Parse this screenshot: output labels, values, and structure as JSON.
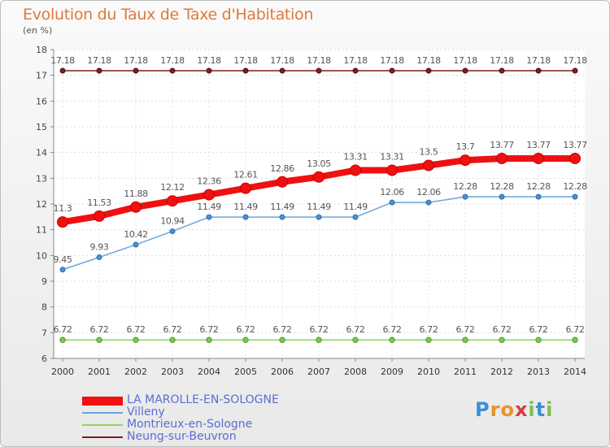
{
  "header": {
    "title": "Evolution du Taux de Taxe d'Habitation",
    "unit": "(en %)"
  },
  "chart_data": {
    "type": "line",
    "title": "Evolution du Taux de Taxe d'Habitation",
    "ylabel": "(en %)",
    "xlabel": "",
    "x": [
      "2000",
      "2001",
      "2002",
      "2003",
      "2004",
      "2005",
      "2006",
      "2007",
      "2008",
      "2009",
      "2010",
      "2011",
      "2012",
      "2013",
      "2014"
    ],
    "ylim": [
      6,
      18
    ],
    "yticks": [
      6,
      7,
      8,
      9,
      10,
      11,
      12,
      13,
      14,
      15,
      16,
      17,
      18
    ],
    "grid": true,
    "legend_position": "bottom-left",
    "series": [
      {
        "name": "LA MAROLLE-EN-SOLOGNE",
        "color": "#ee1111",
        "values": [
          11.3,
          11.53,
          11.88,
          12.12,
          12.36,
          12.61,
          12.86,
          13.05,
          13.31,
          13.31,
          13.5,
          13.7,
          13.77,
          13.77,
          13.77
        ],
        "labels": [
          "11.3",
          "11.53",
          "11.88",
          "12.12",
          "12.36",
          "12.61",
          "12.86",
          "13.05",
          "13.31",
          "13.31",
          "13.5",
          "13.7",
          "13.77",
          "13.77",
          "13.77"
        ]
      },
      {
        "name": "Villeny",
        "color": "#5b9bd5",
        "values": [
          9.45,
          9.93,
          10.42,
          10.94,
          11.49,
          11.49,
          11.49,
          11.49,
          11.49,
          12.06,
          12.06,
          12.28,
          12.28,
          12.28,
          12.28
        ],
        "labels": [
          "9.45",
          "9.93",
          "10.42",
          "10.94",
          "11.49",
          "11.49",
          "11.49",
          "11.49",
          "11.49",
          "12.06",
          "12.06",
          "12.28",
          "12.28",
          "12.28",
          "12.28"
        ]
      },
      {
        "name": "Montrieux-en-Sologne",
        "color": "#7fc94e",
        "values": [
          6.72,
          6.72,
          6.72,
          6.72,
          6.72,
          6.72,
          6.72,
          6.72,
          6.72,
          6.72,
          6.72,
          6.72,
          6.72,
          6.72,
          6.72
        ],
        "labels": [
          "6.72",
          "6.72",
          "6.72",
          "6.72",
          "6.72",
          "6.72",
          "6.72",
          "6.72",
          "6.72",
          "6.72",
          "6.72",
          "6.72",
          "6.72",
          "6.72",
          "6.72"
        ]
      },
      {
        "name": "Neung-sur-Beuvron",
        "color": "#7a1f1f",
        "values": [
          17.18,
          17.18,
          17.18,
          17.18,
          17.18,
          17.18,
          17.18,
          17.18,
          17.18,
          17.18,
          17.18,
          17.18,
          17.18,
          17.18,
          17.18
        ],
        "labels": [
          "17.18",
          "17.18",
          "17.18",
          "17.18",
          "17.18",
          "17.18",
          "17.18",
          "17.18",
          "17.18",
          "17.18",
          "17.18",
          "17.18",
          "17.18",
          "17.18",
          "17.18"
        ]
      }
    ]
  },
  "logo": {
    "text": "Proxiti",
    "letters": [
      "P",
      "r",
      "o",
      "x",
      "i",
      "t",
      "i"
    ],
    "colors": [
      "#3a8fd9",
      "#e8912b",
      "#e8912b",
      "#d93a3a",
      "#7cc04b",
      "#3a8fd9",
      "#7cc04b"
    ]
  }
}
